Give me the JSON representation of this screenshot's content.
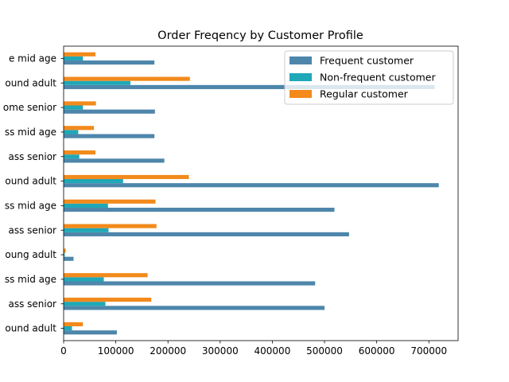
{
  "chart_data": {
    "type": "bar",
    "orientation": "horizontal",
    "title": "Order Freqency by Customer Profile",
    "xlabel": "",
    "ylabel": "",
    "xlim": [
      0,
      756000
    ],
    "xticks": [
      0,
      100000,
      200000,
      300000,
      400000,
      500000,
      600000,
      700000
    ],
    "grid": false,
    "legend_position": "top-right",
    "categories": [
      "ound adult",
      "ass senior",
      "ss mid age",
      "oung adult",
      "ass senior",
      "ss mid age",
      "ound adult",
      "ass senior",
      "ss mid age",
      "ome senior",
      "ound adult",
      "e mid age"
    ],
    "series": [
      {
        "name": "Frequent customer",
        "color": "#4e86ab",
        "values": [
          102000,
          500000,
          482000,
          19000,
          547000,
          519000,
          719000,
          193000,
          174000,
          175000,
          711000,
          174000
        ]
      },
      {
        "name": "Non-frequent customer",
        "color": "#1fa8b8",
        "values": [
          16000,
          80000,
          77000,
          2000,
          86000,
          85000,
          114000,
          30000,
          28000,
          37000,
          128000,
          37000
        ]
      },
      {
        "name": "Regular customer",
        "color": "#f28a1c",
        "values": [
          37000,
          168000,
          161000,
          4000,
          178000,
          176000,
          240000,
          61000,
          58000,
          62000,
          242000,
          61000
        ]
      }
    ]
  }
}
